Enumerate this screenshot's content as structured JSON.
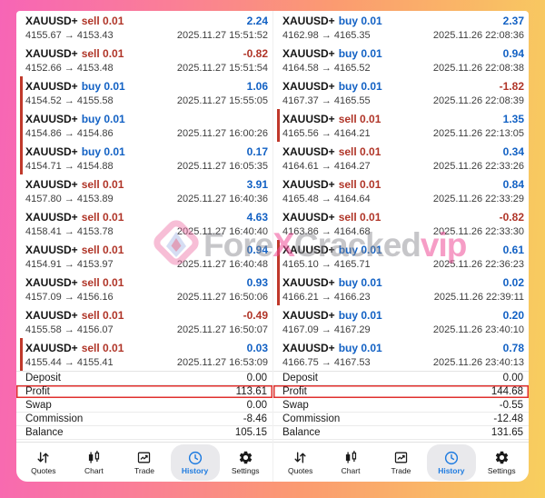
{
  "watermark": {
    "logo": "forexcracked-logo",
    "segments": [
      {
        "text": "Fore",
        "accent": false
      },
      {
        "text": "X",
        "accent": true
      },
      {
        "text": "Cracked",
        "accent": false
      },
      {
        "text": "vip",
        "accent": true
      }
    ]
  },
  "colors": {
    "sell_red": "#b03528",
    "buy_blue": "#1261c4",
    "marker_red": "#c0392b",
    "profit_box_red": "#e0312e",
    "active_tab_blue": "#1e7be0",
    "frame_pink": "#f765b6",
    "frame_orange": "#fb9b70",
    "frame_yellow": "#f8cf5e"
  },
  "panels": [
    {
      "id": "left",
      "trades": [
        {
          "symbol": "XAUUSD+",
          "side": "sell",
          "volume": "0.01",
          "profit": "2.24",
          "price": "4155.67 → 4153.43",
          "time": "2025.11.27 15:51:52",
          "marker": false
        },
        {
          "symbol": "XAUUSD+",
          "side": "sell",
          "volume": "0.01",
          "profit": "-0.82",
          "price": "4152.66 → 4153.48",
          "time": "2025.11.27 15:51:54",
          "marker": false
        },
        {
          "symbol": "XAUUSD+",
          "side": "buy",
          "volume": "0.01",
          "profit": "1.06",
          "price": "4154.52 → 4155.58",
          "time": "2025.11.27 15:55:05",
          "marker": true
        },
        {
          "symbol": "XAUUSD+",
          "side": "buy",
          "volume": "0.01",
          "profit": "",
          "price": "4154.86 → 4154.86",
          "time": "2025.11.27 16:00:26",
          "marker": true
        },
        {
          "symbol": "XAUUSD+",
          "side": "buy",
          "volume": "0.01",
          "profit": "0.17",
          "price": "4154.71 → 4154.88",
          "time": "2025.11.27 16:05:35",
          "marker": true
        },
        {
          "symbol": "XAUUSD+",
          "side": "sell",
          "volume": "0.01",
          "profit": "3.91",
          "price": "4157.80 → 4153.89",
          "time": "2025.11.27 16:40:36",
          "marker": false
        },
        {
          "symbol": "XAUUSD+",
          "side": "sell",
          "volume": "0.01",
          "profit": "4.63",
          "price": "4158.41 → 4153.78",
          "time": "2025.11.27 16:40:40",
          "marker": false
        },
        {
          "symbol": "XAUUSD+",
          "side": "sell",
          "volume": "0.01",
          "profit": "0.94",
          "price": "4154.91 → 4153.97",
          "time": "2025.11.27 16:40:48",
          "marker": false
        },
        {
          "symbol": "XAUUSD+",
          "side": "sell",
          "volume": "0.01",
          "profit": "0.93",
          "price": "4157.09 → 4156.16",
          "time": "2025.11.27 16:50:06",
          "marker": false
        },
        {
          "symbol": "XAUUSD+",
          "side": "sell",
          "volume": "0.01",
          "profit": "-0.49",
          "price": "4155.58 → 4156.07",
          "time": "2025.11.27 16:50:07",
          "marker": false
        },
        {
          "symbol": "XAUUSD+",
          "side": "sell",
          "volume": "0.01",
          "profit": "0.03",
          "price": "4155.44 → 4155.41",
          "time": "2025.11.27 16:53:09",
          "marker": true
        }
      ],
      "summary": [
        {
          "label": "Deposit",
          "value": "0.00",
          "highlight": false
        },
        {
          "label": "Profit",
          "value": "113.61",
          "highlight": true
        },
        {
          "label": "Swap",
          "value": "0.00",
          "highlight": false
        },
        {
          "label": "Commission",
          "value": "-8.46",
          "highlight": false
        },
        {
          "label": "Balance",
          "value": "105.15",
          "highlight": false
        }
      ],
      "tabs": [
        {
          "label": "Quotes",
          "icon": "quotes-icon",
          "active": false
        },
        {
          "label": "Chart",
          "icon": "chart-icon",
          "active": false
        },
        {
          "label": "Trade",
          "icon": "trade-icon",
          "active": false
        },
        {
          "label": "History",
          "icon": "history-icon",
          "active": true
        },
        {
          "label": "Settings",
          "icon": "settings-icon",
          "active": false
        }
      ]
    },
    {
      "id": "right",
      "trades": [
        {
          "symbol": "XAUUSD+",
          "side": "buy",
          "volume": "0.01",
          "profit": "2.37",
          "price": "4162.98 → 4165.35",
          "time": "2025.11.26 22:08:36",
          "marker": false
        },
        {
          "symbol": "XAUUSD+",
          "side": "buy",
          "volume": "0.01",
          "profit": "0.94",
          "price": "4164.58 → 4165.52",
          "time": "2025.11.26 22:08:38",
          "marker": false
        },
        {
          "symbol": "XAUUSD+",
          "side": "buy",
          "volume": "0.01",
          "profit": "-1.82",
          "price": "4167.37 → 4165.55",
          "time": "2025.11.26 22:08:39",
          "marker": false
        },
        {
          "symbol": "XAUUSD+",
          "side": "sell",
          "volume": "0.01",
          "profit": "1.35",
          "price": "4165.56 → 4164.21",
          "time": "2025.11.26 22:13:05",
          "marker": true
        },
        {
          "symbol": "XAUUSD+",
          "side": "sell",
          "volume": "0.01",
          "profit": "0.34",
          "price": "4164.61 → 4164.27",
          "time": "2025.11.26 22:33:26",
          "marker": false
        },
        {
          "symbol": "XAUUSD+",
          "side": "sell",
          "volume": "0.01",
          "profit": "0.84",
          "price": "4165.48 → 4164.64",
          "time": "2025.11.26 22:33:29",
          "marker": false
        },
        {
          "symbol": "XAUUSD+",
          "side": "sell",
          "volume": "0.01",
          "profit": "-0.82",
          "price": "4163.86 → 4164.68",
          "time": "2025.11.26 22:33:30",
          "marker": false
        },
        {
          "symbol": "XAUUSD+",
          "side": "buy",
          "volume": "0.01",
          "profit": "0.61",
          "price": "4165.10 → 4165.71",
          "time": "2025.11.26 22:36:23",
          "marker": true
        },
        {
          "symbol": "XAUUSD+",
          "side": "buy",
          "volume": "0.01",
          "profit": "0.02",
          "price": "4166.21 → 4166.23",
          "time": "2025.11.26 22:39:11",
          "marker": true
        },
        {
          "symbol": "XAUUSD+",
          "side": "buy",
          "volume": "0.01",
          "profit": "0.20",
          "price": "4167.09 → 4167.29",
          "time": "2025.11.26 23:40:10",
          "marker": false
        },
        {
          "symbol": "XAUUSD+",
          "side": "buy",
          "volume": "0.01",
          "profit": "0.78",
          "price": "4166.75 → 4167.53",
          "time": "2025.11.26 23:40:13",
          "marker": false
        }
      ],
      "summary": [
        {
          "label": "Deposit",
          "value": "0.00",
          "highlight": false
        },
        {
          "label": "Profit",
          "value": "144.68",
          "highlight": true
        },
        {
          "label": "Swap",
          "value": "-0.55",
          "highlight": false
        },
        {
          "label": "Commission",
          "value": "-12.48",
          "highlight": false
        },
        {
          "label": "Balance",
          "value": "131.65",
          "highlight": false
        }
      ],
      "tabs": [
        {
          "label": "Quotes",
          "icon": "quotes-icon",
          "active": false
        },
        {
          "label": "Chart",
          "icon": "chart-icon",
          "active": false
        },
        {
          "label": "Trade",
          "icon": "trade-icon",
          "active": false
        },
        {
          "label": "History",
          "icon": "history-icon",
          "active": true
        },
        {
          "label": "Settings",
          "icon": "settings-icon",
          "active": false
        }
      ]
    }
  ]
}
